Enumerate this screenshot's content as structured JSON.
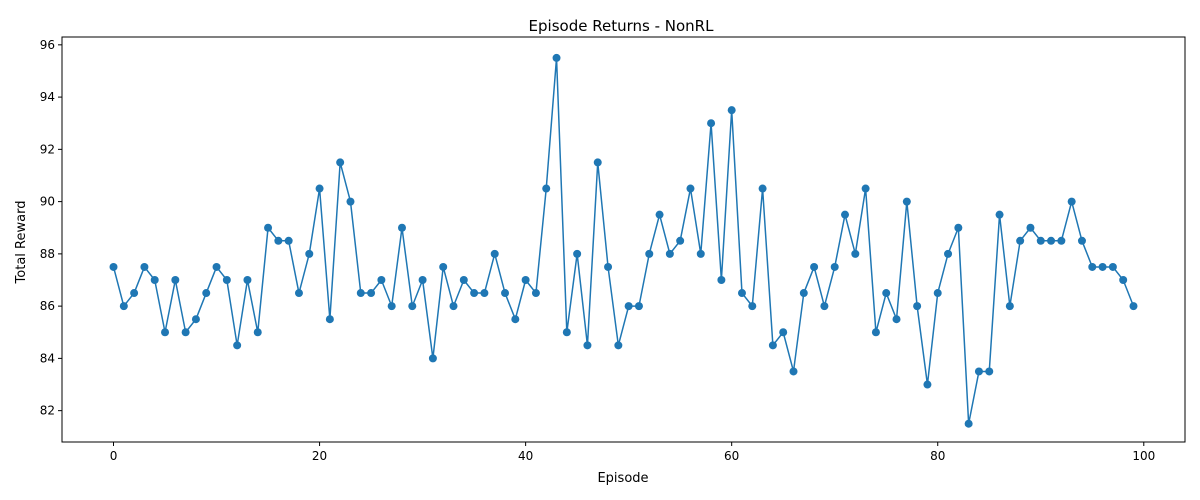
{
  "chart_data": {
    "type": "line",
    "title": "Episode Returns - NonRL",
    "xlabel": "Episode",
    "ylabel": "Total Reward",
    "xlim": [
      -5,
      104
    ],
    "ylim": [
      80.8,
      96.3
    ],
    "xticks": [
      0,
      20,
      40,
      60,
      80,
      100
    ],
    "yticks": [
      82,
      84,
      86,
      88,
      90,
      92,
      94,
      96
    ],
    "grid": false,
    "series": [
      {
        "color": "#1f77b4",
        "marker": "circle",
        "x": [
          0,
          1,
          2,
          3,
          4,
          5,
          6,
          7,
          8,
          9,
          10,
          11,
          12,
          13,
          14,
          15,
          16,
          17,
          18,
          19,
          20,
          21,
          22,
          23,
          24,
          25,
          26,
          27,
          28,
          29,
          30,
          31,
          32,
          33,
          34,
          35,
          36,
          37,
          38,
          39,
          40,
          41,
          42,
          43,
          44,
          45,
          46,
          47,
          48,
          49,
          50,
          51,
          52,
          53,
          54,
          55,
          56,
          57,
          58,
          59,
          60,
          61,
          62,
          63,
          64,
          65,
          66,
          67,
          68,
          69,
          70,
          71,
          72,
          73,
          74,
          75,
          76,
          77,
          78,
          79,
          80,
          81,
          82,
          83,
          84,
          85,
          86,
          87,
          88,
          89,
          90,
          91,
          92,
          93,
          94,
          95,
          96,
          97,
          98,
          99
        ],
        "values": [
          87.5,
          86,
          86.5,
          87.5,
          87,
          85,
          87,
          85,
          85.5,
          86.5,
          87.5,
          87,
          84.5,
          87,
          85,
          89,
          88.5,
          88.5,
          86.5,
          88,
          90.5,
          85.5,
          91.5,
          90,
          86.5,
          86.5,
          87,
          86,
          89,
          86,
          87,
          84,
          87.5,
          86,
          87,
          86.5,
          86.5,
          88,
          86.5,
          85.5,
          87,
          86.5,
          90.5,
          95.5,
          85,
          88,
          84.5,
          91.5,
          87.5,
          84.5,
          86,
          86,
          88,
          89.5,
          88,
          88.5,
          90.5,
          88,
          93,
          87,
          93.5,
          86.5,
          86,
          90.5,
          84.5,
          85,
          83.5,
          86.5,
          87.5,
          86,
          87.5,
          89.5,
          88,
          90.5,
          85,
          86.5,
          85.5,
          90,
          86,
          83,
          86.5,
          88,
          89,
          81.5,
          83.5,
          83.5,
          89.5,
          86,
          88.5,
          89,
          88.5,
          88.5,
          88.5,
          90,
          88.5,
          87.5,
          87.5,
          87.5,
          87,
          86
        ]
      }
    ]
  }
}
